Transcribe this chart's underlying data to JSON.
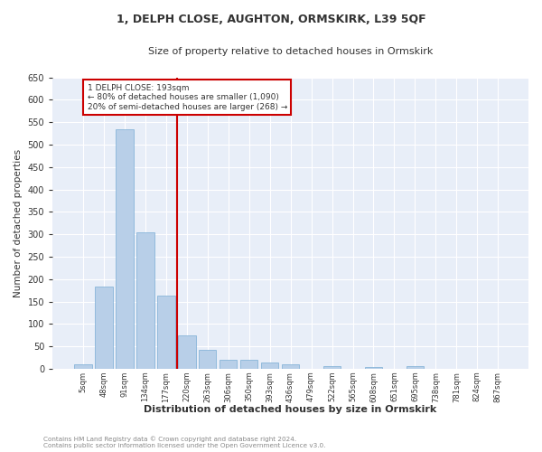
{
  "title1": "1, DELPH CLOSE, AUGHTON, ORMSKIRK, L39 5QF",
  "title2": "Size of property relative to detached houses in Ormskirk",
  "xlabel": "Distribution of detached houses by size in Ormskirk",
  "ylabel": "Number of detached properties",
  "bar_values": [
    10,
    183,
    535,
    305,
    163,
    75,
    42,
    20,
    20,
    13,
    10,
    0,
    6,
    0,
    4,
    0,
    5,
    0,
    0,
    0,
    0
  ],
  "bar_labels": [
    "5sqm",
    "48sqm",
    "91sqm",
    "134sqm",
    "177sqm",
    "220sqm",
    "263sqm",
    "306sqm",
    "350sqm",
    "393sqm",
    "436sqm",
    "479sqm",
    "522sqm",
    "565sqm",
    "608sqm",
    "651sqm",
    "695sqm",
    "738sqm",
    "781sqm",
    "824sqm",
    "867sqm"
  ],
  "bar_color": "#b8cfe8",
  "bar_edge_color": "#7aadd4",
  "background_color": "#e8eef8",
  "grid_color": "#ffffff",
  "red_line_x": 4.55,
  "annotation_title": "1 DELPH CLOSE: 193sqm",
  "annotation_line1": "← 80% of detached houses are smaller (1,090)",
  "annotation_line2": "20% of semi-detached houses are larger (268) →",
  "ylim": [
    0,
    650
  ],
  "yticks": [
    0,
    50,
    100,
    150,
    200,
    250,
    300,
    350,
    400,
    450,
    500,
    550,
    600,
    650
  ],
  "footnote1": "Contains HM Land Registry data © Crown copyright and database right 2024.",
  "footnote2": "Contains public sector information licensed under the Open Government Licence v3.0."
}
